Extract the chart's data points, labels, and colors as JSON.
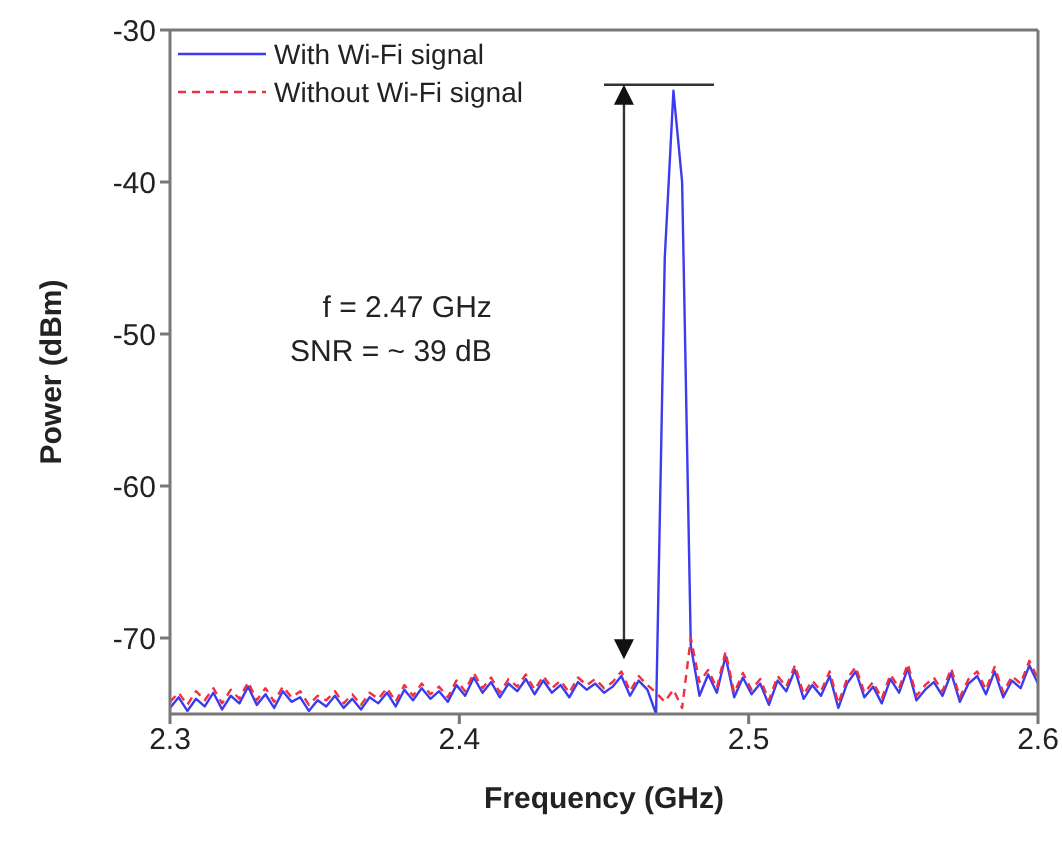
{
  "chart_data": {
    "type": "line",
    "xlabel": "Frequency (GHz)",
    "ylabel": "Power (dBm)",
    "xlim": [
      2.3,
      2.6
    ],
    "xticks": [
      2.3,
      2.4,
      2.5,
      2.6
    ],
    "ylim": [
      -75,
      -30
    ],
    "yticks": [
      -30,
      -40,
      -50,
      -60,
      -70
    ],
    "legend": "top left",
    "marker": "none",
    "annotations": [
      "f = 2.47 GHz",
      "SNR = ~ 39 dB"
    ],
    "x": [
      2.3,
      2.303,
      2.306,
      2.309,
      2.312,
      2.315,
      2.318,
      2.321,
      2.324,
      2.327,
      2.33,
      2.333,
      2.336,
      2.339,
      2.342,
      2.345,
      2.348,
      2.351,
      2.354,
      2.357,
      2.36,
      2.363,
      2.366,
      2.369,
      2.372,
      2.375,
      2.378,
      2.381,
      2.384,
      2.387,
      2.39,
      2.393,
      2.396,
      2.399,
      2.402,
      2.405,
      2.408,
      2.411,
      2.414,
      2.417,
      2.42,
      2.423,
      2.426,
      2.429,
      2.432,
      2.435,
      2.438,
      2.441,
      2.444,
      2.447,
      2.45,
      2.453,
      2.456,
      2.459,
      2.462,
      2.465,
      2.468,
      2.471,
      2.474,
      2.477,
      2.48,
      2.483,
      2.486,
      2.489,
      2.492,
      2.495,
      2.498,
      2.501,
      2.504,
      2.507,
      2.51,
      2.513,
      2.516,
      2.519,
      2.522,
      2.525,
      2.528,
      2.531,
      2.534,
      2.537,
      2.54,
      2.543,
      2.546,
      2.549,
      2.552,
      2.555,
      2.558,
      2.561,
      2.564,
      2.567,
      2.57,
      2.573,
      2.576,
      2.579,
      2.582,
      2.585,
      2.588,
      2.591,
      2.594,
      2.597,
      2.6
    ],
    "series": [
      {
        "name": "With Wi-Fi signal",
        "color": "#3b3bf0",
        "line_style": "solid",
        "values": [
          -74.6,
          -73.9,
          -74.8,
          -74.0,
          -74.5,
          -73.6,
          -74.7,
          -73.8,
          -74.3,
          -73.2,
          -74.4,
          -73.7,
          -74.6,
          -73.5,
          -74.2,
          -73.9,
          -74.8,
          -74.1,
          -74.5,
          -73.8,
          -74.6,
          -74.0,
          -74.7,
          -73.9,
          -74.3,
          -73.6,
          -74.5,
          -73.4,
          -74.1,
          -73.3,
          -74.0,
          -73.5,
          -74.2,
          -73.1,
          -73.8,
          -72.6,
          -73.6,
          -72.9,
          -73.9,
          -73.0,
          -73.5,
          -72.7,
          -73.7,
          -72.8,
          -73.6,
          -73.1,
          -73.9,
          -72.9,
          -73.4,
          -73.0,
          -73.6,
          -73.2,
          -72.5,
          -73.8,
          -72.8,
          -73.4,
          -75.0,
          -45,
          -34,
          -40,
          -70.5,
          -73.8,
          -72.4,
          -73.6,
          -71.2,
          -73.9,
          -72.6,
          -73.7,
          -73.0,
          -74.4,
          -72.8,
          -73.5,
          -72.1,
          -74.0,
          -73.1,
          -73.8,
          -72.5,
          -74.6,
          -73.0,
          -72.2,
          -73.9,
          -73.2,
          -74.3,
          -72.7,
          -73.6,
          -72.0,
          -74.1,
          -73.4,
          -72.9,
          -73.8,
          -72.3,
          -74.2,
          -73.0,
          -72.5,
          -73.7,
          -72.2,
          -73.9,
          -72.8,
          -73.3,
          -71.8,
          -73.0
        ]
      },
      {
        "name": "Without Wi-Fi signal",
        "color": "#f03040",
        "line_style": "dashed",
        "values": [
          -74.2,
          -73.6,
          -74.4,
          -73.5,
          -74.1,
          -73.3,
          -74.3,
          -73.4,
          -74.0,
          -72.9,
          -74.1,
          -73.3,
          -74.2,
          -73.2,
          -73.9,
          -73.5,
          -74.4,
          -73.8,
          -74.1,
          -73.5,
          -74.3,
          -73.7,
          -74.4,
          -73.6,
          -74.0,
          -73.3,
          -74.2,
          -73.1,
          -73.8,
          -73.0,
          -73.7,
          -73.2,
          -73.9,
          -72.8,
          -73.5,
          -72.3,
          -73.3,
          -72.6,
          -73.6,
          -72.7,
          -73.2,
          -72.4,
          -73.4,
          -72.5,
          -73.3,
          -72.8,
          -73.6,
          -72.6,
          -73.1,
          -72.7,
          -73.3,
          -72.9,
          -72.2,
          -73.5,
          -72.5,
          -73.1,
          -73.6,
          -74.2,
          -73.4,
          -74.6,
          -70.0,
          -72.9,
          -72.1,
          -73.3,
          -70.9,
          -73.6,
          -72.3,
          -73.4,
          -72.7,
          -74.1,
          -72.5,
          -73.2,
          -71.8,
          -73.7,
          -72.8,
          -73.5,
          -72.2,
          -74.3,
          -72.7,
          -71.9,
          -73.6,
          -72.9,
          -74.0,
          -72.4,
          -73.3,
          -71.7,
          -73.8,
          -73.1,
          -72.6,
          -73.5,
          -72.0,
          -73.9,
          -72.7,
          -72.2,
          -73.4,
          -71.9,
          -73.6,
          -72.5,
          -73.0,
          -71.5,
          -72.7
        ]
      }
    ]
  }
}
